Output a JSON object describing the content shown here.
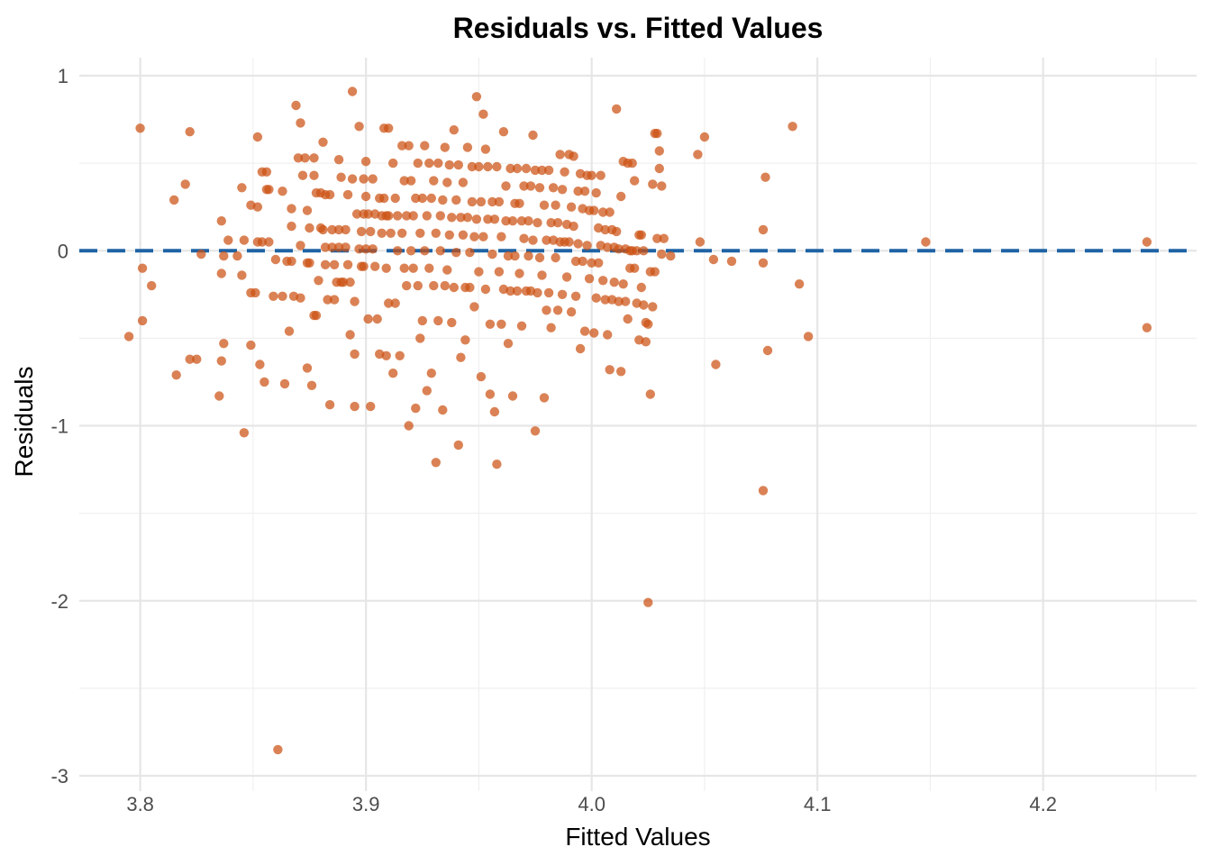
{
  "chart_data": {
    "type": "scatter",
    "title": "Residuals vs. Fitted Values",
    "xlabel": "Fitted Values",
    "ylabel": "Residuals",
    "xlim": [
      3.773,
      4.268
    ],
    "ylim": [
      -3.0,
      1.0
    ],
    "x_ticks": [
      3.8,
      3.9,
      4.0,
      4.1,
      4.2
    ],
    "x_tick_labels": [
      "3.8",
      "3.9",
      "4.0",
      "4.1",
      "4.2"
    ],
    "y_ticks": [
      -3,
      -2,
      -1,
      0,
      1
    ],
    "y_tick_labels": [
      "-3",
      "-2",
      "-1",
      "0",
      "1"
    ],
    "grid": true,
    "reference_line": {
      "y": 0,
      "style": "dashed",
      "color": "#1f63a5"
    },
    "point_color": "#cc5214",
    "points": [
      [
        3.795,
        -0.49
      ],
      [
        3.8,
        0.7
      ],
      [
        3.801,
        -0.1
      ],
      [
        3.801,
        -0.4
      ],
      [
        3.805,
        -0.2
      ],
      [
        3.815,
        0.29
      ],
      [
        3.816,
        -0.71
      ],
      [
        3.82,
        0.38
      ],
      [
        3.822,
        -0.62
      ],
      [
        3.822,
        0.68
      ],
      [
        3.825,
        -0.62
      ],
      [
        3.827,
        -0.02
      ],
      [
        3.835,
        -0.83
      ],
      [
        3.836,
        0.17
      ],
      [
        3.836,
        -0.13
      ],
      [
        3.836,
        -0.63
      ],
      [
        3.837,
        -0.53
      ],
      [
        3.837,
        -0.03
      ],
      [
        3.839,
        0.06
      ],
      [
        3.843,
        -0.03
      ],
      [
        3.845,
        0.36
      ],
      [
        3.845,
        -0.14
      ],
      [
        3.846,
        0.06
      ],
      [
        3.846,
        -1.04
      ],
      [
        3.849,
        0.26
      ],
      [
        3.849,
        -0.24
      ],
      [
        3.849,
        -0.54
      ],
      [
        3.851,
        -0.24
      ],
      [
        3.852,
        0.65
      ],
      [
        3.852,
        0.25
      ],
      [
        3.852,
        0.05
      ],
      [
        3.853,
        -0.65
      ],
      [
        3.854,
        0.45
      ],
      [
        3.854,
        0.05
      ],
      [
        3.855,
        -0.75
      ],
      [
        3.856,
        0.45
      ],
      [
        3.856,
        0.35
      ],
      [
        3.857,
        0.35
      ],
      [
        3.857,
        0.05
      ],
      [
        3.859,
        -0.26
      ],
      [
        3.86,
        -0.05
      ],
      [
        3.861,
        -2.85
      ],
      [
        3.863,
        0.34
      ],
      [
        3.863,
        -0.26
      ],
      [
        3.864,
        -0.76
      ],
      [
        3.865,
        -0.06
      ],
      [
        3.866,
        -0.46
      ],
      [
        3.867,
        0.24
      ],
      [
        3.867,
        0.14
      ],
      [
        3.867,
        -0.06
      ],
      [
        3.868,
        -0.26
      ],
      [
        3.869,
        0.83
      ],
      [
        3.87,
        0.53
      ],
      [
        3.871,
        0.73
      ],
      [
        3.871,
        0.03
      ],
      [
        3.871,
        -0.27
      ],
      [
        3.872,
        0.43
      ],
      [
        3.873,
        0.53
      ],
      [
        3.874,
        0.23
      ],
      [
        3.874,
        -0.07
      ],
      [
        3.874,
        -0.67
      ],
      [
        3.875,
        0.13
      ],
      [
        3.875,
        -0.07
      ],
      [
        3.876,
        -0.77
      ],
      [
        3.877,
        0.53
      ],
      [
        3.877,
        0.43
      ],
      [
        3.877,
        -0.37
      ],
      [
        3.878,
        0.33
      ],
      [
        3.878,
        -0.37
      ],
      [
        3.879,
        -0.17
      ],
      [
        3.88,
        0.33
      ],
      [
        3.88,
        0.13
      ],
      [
        3.881,
        0.62
      ],
      [
        3.881,
        0.12
      ],
      [
        3.882,
        0.32
      ],
      [
        3.882,
        0.02
      ],
      [
        3.882,
        -0.08
      ],
      [
        3.883,
        -0.28
      ],
      [
        3.884,
        0.32
      ],
      [
        3.884,
        -0.88
      ],
      [
        3.885,
        0.12
      ],
      [
        3.885,
        0.02
      ],
      [
        3.886,
        -0.08
      ],
      [
        3.886,
        -0.28
      ],
      [
        3.887,
        -0.18
      ],
      [
        3.888,
        0.52
      ],
      [
        3.888,
        0.12
      ],
      [
        3.888,
        0.02
      ],
      [
        3.889,
        -0.18
      ],
      [
        3.889,
        0.42
      ],
      [
        3.89,
        -0.18
      ],
      [
        3.891,
        0.12
      ],
      [
        3.891,
        0.02
      ],
      [
        3.892,
        0.32
      ],
      [
        3.892,
        -0.08
      ],
      [
        3.893,
        -0.18
      ],
      [
        3.893,
        -0.48
      ],
      [
        3.894,
        0.91
      ],
      [
        3.894,
        0.41
      ],
      [
        3.895,
        -0.29
      ],
      [
        3.895,
        -0.89
      ],
      [
        3.895,
        -0.59
      ],
      [
        3.896,
        0.21
      ],
      [
        3.897,
        0.71
      ],
      [
        3.897,
        0.01
      ],
      [
        3.898,
        -0.09
      ],
      [
        3.898,
        0.11
      ],
      [
        3.899,
        0.41
      ],
      [
        3.899,
        0.21
      ],
      [
        3.899,
        -0.09
      ],
      [
        3.9,
        0.51
      ],
      [
        3.9,
        0.31
      ],
      [
        3.9,
        0.01
      ],
      [
        3.901,
        -0.39
      ],
      [
        3.901,
        0.21
      ],
      [
        3.902,
        0.11
      ],
      [
        3.902,
        -0.89
      ],
      [
        3.903,
        0.41
      ],
      [
        3.903,
        0.01
      ],
      [
        3.904,
        -0.09
      ],
      [
        3.904,
        0.21
      ],
      [
        3.905,
        -0.39
      ],
      [
        3.906,
        -0.59
      ],
      [
        3.906,
        0.3
      ],
      [
        3.907,
        0.2
      ],
      [
        3.907,
        0.1
      ],
      [
        3.908,
        0.7
      ],
      [
        3.908,
        0.3
      ],
      [
        3.909,
        0.2
      ],
      [
        3.909,
        -0.1
      ],
      [
        3.909,
        -0.6
      ],
      [
        3.91,
        0.7
      ],
      [
        3.91,
        -0.3
      ],
      [
        3.91,
        0.2
      ],
      [
        3.911,
        0.1
      ],
      [
        3.912,
        0.5
      ],
      [
        3.912,
        -0.7
      ],
      [
        3.913,
        0.3
      ],
      [
        3.913,
        -0.3
      ],
      [
        3.914,
        0.2
      ],
      [
        3.914,
        0.0
      ],
      [
        3.915,
        -0.6
      ],
      [
        3.916,
        0.6
      ],
      [
        3.916,
        0.1
      ],
      [
        3.917,
        0.4
      ],
      [
        3.917,
        -0.1
      ],
      [
        3.918,
        0.2
      ],
      [
        3.918,
        -0.2
      ],
      [
        3.919,
        -1.0
      ],
      [
        3.919,
        0.6
      ],
      [
        3.92,
        0.4
      ],
      [
        3.92,
        0.0
      ],
      [
        3.921,
        0.2
      ],
      [
        3.921,
        -0.1
      ],
      [
        3.922,
        0.3
      ],
      [
        3.922,
        -0.9
      ],
      [
        3.923,
        0.5
      ],
      [
        3.923,
        -0.2
      ],
      [
        3.924,
        -0.5
      ],
      [
        3.924,
        0.1
      ],
      [
        3.925,
        0.3
      ],
      [
        3.925,
        -0.4
      ],
      [
        3.926,
        0.6
      ],
      [
        3.926,
        0.0
      ],
      [
        3.927,
        0.2
      ],
      [
        3.927,
        -0.8
      ],
      [
        3.928,
        0.5
      ],
      [
        3.928,
        -0.1
      ],
      [
        3.929,
        0.3
      ],
      [
        3.929,
        -0.7
      ],
      [
        3.93,
        -0.2
      ],
      [
        3.93,
        0.4
      ],
      [
        3.931,
        0.1
      ],
      [
        3.931,
        -1.21
      ],
      [
        3.932,
        0.5
      ],
      [
        3.932,
        -0.4
      ],
      [
        3.933,
        0.2
      ],
      [
        3.933,
        0.0
      ],
      [
        3.934,
        0.29
      ],
      [
        3.934,
        -0.91
      ],
      [
        3.935,
        0.59
      ],
      [
        3.935,
        -0.2
      ],
      [
        3.936,
        0.39
      ],
      [
        3.936,
        -0.11
      ],
      [
        3.937,
        0.49
      ],
      [
        3.937,
        0.09
      ],
      [
        3.938,
        0.19
      ],
      [
        3.938,
        -0.41
      ],
      [
        3.939,
        0.69
      ],
      [
        3.939,
        -0.21
      ],
      [
        3.94,
        0.29
      ],
      [
        3.94,
        -0.01
      ],
      [
        3.941,
        0.49
      ],
      [
        3.941,
        -1.11
      ],
      [
        3.942,
        0.19
      ],
      [
        3.942,
        -0.61
      ],
      [
        3.943,
        0.39
      ],
      [
        3.943,
        0.09
      ],
      [
        3.944,
        -0.21
      ],
      [
        3.944,
        -0.51
      ],
      [
        3.945,
        0.59
      ],
      [
        3.945,
        0.19
      ],
      [
        3.946,
        -0.01
      ],
      [
        3.946,
        -0.21
      ],
      [
        3.947,
        0.48
      ],
      [
        3.947,
        0.28
      ],
      [
        3.948,
        0.08
      ],
      [
        3.948,
        -0.32
      ],
      [
        3.949,
        0.88
      ],
      [
        3.949,
        0.18
      ],
      [
        3.95,
        0.48
      ],
      [
        3.95,
        -0.12
      ],
      [
        3.951,
        0.28
      ],
      [
        3.951,
        -0.72
      ],
      [
        3.952,
        0.78
      ],
      [
        3.952,
        0.08
      ],
      [
        3.953,
        0.58
      ],
      [
        3.953,
        -0.22
      ],
      [
        3.954,
        0.48
      ],
      [
        3.954,
        0.18
      ],
      [
        3.955,
        -0.82
      ],
      [
        3.955,
        -0.42
      ],
      [
        3.956,
        0.28
      ],
      [
        3.956,
        -0.02
      ],
      [
        3.957,
        -0.92
      ],
      [
        3.957,
        0.18
      ],
      [
        3.958,
        -1.22
      ],
      [
        3.958,
        0.48
      ],
      [
        3.959,
        -0.12
      ],
      [
        3.959,
        0.28
      ],
      [
        3.96,
        -0.42
      ],
      [
        3.96,
        0.08
      ],
      [
        3.961,
        0.68
      ],
      [
        3.961,
        -0.22
      ],
      [
        3.962,
        0.37
      ],
      [
        3.962,
        0.17
      ],
      [
        3.963,
        -0.03
      ],
      [
        3.963,
        -0.53
      ],
      [
        3.964,
        0.47
      ],
      [
        3.964,
        -0.23
      ],
      [
        3.965,
        0.17
      ],
      [
        3.965,
        -0.83
      ],
      [
        3.966,
        0.27
      ],
      [
        3.966,
        -0.03
      ],
      [
        3.967,
        0.47
      ],
      [
        3.967,
        -0.23
      ],
      [
        3.968,
        -0.13
      ],
      [
        3.968,
        0.27
      ],
      [
        3.969,
        0.17
      ],
      [
        3.969,
        -0.43
      ],
      [
        3.97,
        0.37
      ],
      [
        3.97,
        0.07
      ],
      [
        3.971,
        0.47
      ],
      [
        3.971,
        -0.23
      ],
      [
        3.972,
        0.17
      ],
      [
        3.972,
        -0.03
      ],
      [
        3.973,
        0.37
      ],
      [
        3.973,
        -0.23
      ],
      [
        3.974,
        0.66
      ],
      [
        3.974,
        0.06
      ],
      [
        3.975,
        0.46
      ],
      [
        3.975,
        -1.03
      ],
      [
        3.976,
        0.16
      ],
      [
        3.976,
        -0.24
      ],
      [
        3.977,
        0.36
      ],
      [
        3.977,
        -0.04
      ],
      [
        3.978,
        0.46
      ],
      [
        3.978,
        -0.14
      ],
      [
        3.979,
        0.26
      ],
      [
        3.979,
        -0.84
      ],
      [
        3.98,
        0.06
      ],
      [
        3.98,
        -0.34
      ],
      [
        3.981,
        0.46
      ],
      [
        3.981,
        -0.24
      ],
      [
        3.982,
        0.16
      ],
      [
        3.982,
        -0.44
      ],
      [
        3.983,
        0.36
      ],
      [
        3.983,
        0.06
      ],
      [
        3.984,
        0.26
      ],
      [
        3.984,
        -0.04
      ],
      [
        3.985,
        -0.34
      ],
      [
        3.985,
        0.16
      ],
      [
        3.986,
        0.55
      ],
      [
        3.986,
        0.05
      ],
      [
        3.987,
        0.35
      ],
      [
        3.987,
        -0.25
      ],
      [
        3.988,
        0.05
      ],
      [
        3.988,
        0.45
      ],
      [
        3.989,
        0.15
      ],
      [
        3.989,
        -0.15
      ],
      [
        3.99,
        0.55
      ],
      [
        3.99,
        0.05
      ],
      [
        3.991,
        0.25
      ],
      [
        3.991,
        -0.35
      ],
      [
        3.992,
        0.54
      ],
      [
        3.992,
        0.14
      ],
      [
        3.993,
        -0.06
      ],
      [
        3.993,
        -0.26
      ],
      [
        3.994,
        0.34
      ],
      [
        3.994,
        0.04
      ],
      [
        3.995,
        0.44
      ],
      [
        3.995,
        -0.56
      ],
      [
        3.996,
        0.24
      ],
      [
        3.996,
        -0.06
      ],
      [
        3.997,
        0.34
      ],
      [
        3.997,
        -0.46
      ],
      [
        3.998,
        0.43
      ],
      [
        3.998,
        0.03
      ],
      [
        3.999,
        0.23
      ],
      [
        3.999,
        -0.16
      ],
      [
        4.0,
        0.43
      ],
      [
        4.0,
        -0.07
      ],
      [
        4.001,
        0.23
      ],
      [
        4.001,
        -0.47
      ],
      [
        4.002,
        0.33
      ],
      [
        4.002,
        -0.27
      ],
      [
        4.003,
        0.13
      ],
      [
        4.003,
        -0.07
      ],
      [
        4.004,
        0.43
      ],
      [
        4.004,
        0.03
      ],
      [
        4.005,
        -0.17
      ],
      [
        4.005,
        0.22
      ],
      [
        4.006,
        -0.28
      ],
      [
        4.006,
        0.12
      ],
      [
        4.007,
        -0.48
      ],
      [
        4.007,
        0.02
      ],
      [
        4.008,
        0.22
      ],
      [
        4.008,
        -0.68
      ],
      [
        4.009,
        0.12
      ],
      [
        4.009,
        -0.28
      ],
      [
        4.01,
        0.02
      ],
      [
        4.01,
        -0.18
      ],
      [
        4.011,
        0.81
      ],
      [
        4.011,
        0.11
      ],
      [
        4.012,
        -0.29
      ],
      [
        4.012,
        0.01
      ],
      [
        4.013,
        0.31
      ],
      [
        4.013,
        -0.69
      ],
      [
        4.014,
        0.51
      ],
      [
        4.014,
        -0.19
      ],
      [
        4.015,
        0.01
      ],
      [
        4.015,
        -0.29
      ],
      [
        4.016,
        -0.39
      ],
      [
        4.016,
        0.5
      ],
      [
        4.017,
        0.0
      ],
      [
        4.017,
        -0.1
      ],
      [
        4.018,
        0.5
      ],
      [
        4.018,
        0.0
      ],
      [
        4.019,
        0.4
      ],
      [
        4.019,
        -0.1
      ],
      [
        4.02,
        0.0
      ],
      [
        4.02,
        -0.3
      ],
      [
        4.021,
        0.09
      ],
      [
        4.021,
        -0.51
      ],
      [
        4.022,
        0.09
      ],
      [
        4.022,
        -0.21
      ],
      [
        4.023,
        -0.31
      ],
      [
        4.023,
        0.0
      ],
      [
        4.024,
        -0.41
      ],
      [
        4.024,
        -0.52
      ],
      [
        4.025,
        -2.01
      ],
      [
        4.025,
        -0.42
      ],
      [
        4.026,
        -0.12
      ],
      [
        4.026,
        -0.82
      ],
      [
        4.027,
        0.38
      ],
      [
        4.027,
        -0.32
      ],
      [
        4.028,
        0.67
      ],
      [
        4.028,
        -0.12
      ],
      [
        4.029,
        0.67
      ],
      [
        4.029,
        0.07
      ],
      [
        4.03,
        0.57
      ],
      [
        4.03,
        0.47
      ],
      [
        4.031,
        0.37
      ],
      [
        4.031,
        -0.02
      ],
      [
        4.032,
        0.07
      ],
      [
        4.035,
        -0.03
      ],
      [
        4.047,
        0.55
      ],
      [
        4.048,
        0.05
      ],
      [
        4.05,
        0.65
      ],
      [
        4.054,
        -0.05
      ],
      [
        4.055,
        -0.65
      ],
      [
        4.062,
        -0.06
      ],
      [
        4.076,
        0.12
      ],
      [
        4.076,
        -0.07
      ],
      [
        4.076,
        -1.37
      ],
      [
        4.077,
        0.42
      ],
      [
        4.078,
        -0.57
      ],
      [
        4.089,
        0.71
      ],
      [
        4.092,
        -0.19
      ],
      [
        4.096,
        -0.49
      ],
      [
        4.148,
        0.05
      ],
      [
        4.246,
        0.05
      ],
      [
        4.246,
        -0.44
      ]
    ]
  }
}
